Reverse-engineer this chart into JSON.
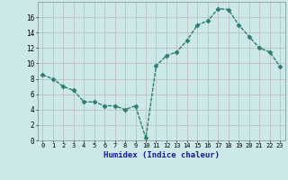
{
  "x": [
    0,
    1,
    2,
    3,
    4,
    5,
    6,
    7,
    8,
    9,
    10,
    11,
    12,
    13,
    14,
    15,
    16,
    17,
    18,
    19,
    20,
    21,
    22,
    23
  ],
  "y": [
    8.5,
    8.0,
    7.0,
    6.5,
    5.0,
    5.0,
    4.5,
    4.5,
    4.0,
    4.5,
    0.3,
    9.7,
    11.0,
    11.5,
    13.0,
    15.0,
    15.5,
    17.1,
    17.0,
    15.0,
    13.5,
    12.0,
    11.5,
    9.6
  ],
  "line_color": "#2e7d72",
  "marker": "D",
  "marker_size": 2.5,
  "bg_color": "#cce8e8",
  "grid_color": "#b8b8b8",
  "xlabel": "Humidex (Indice chaleur)",
  "xlim": [
    -0.5,
    23.5
  ],
  "ylim": [
    0,
    18
  ],
  "yticks": [
    0,
    2,
    4,
    6,
    8,
    10,
    12,
    14,
    16
  ],
  "xticks": [
    0,
    1,
    2,
    3,
    4,
    5,
    6,
    7,
    8,
    9,
    10,
    11,
    12,
    13,
    14,
    15,
    16,
    17,
    18,
    19,
    20,
    21,
    22,
    23
  ]
}
